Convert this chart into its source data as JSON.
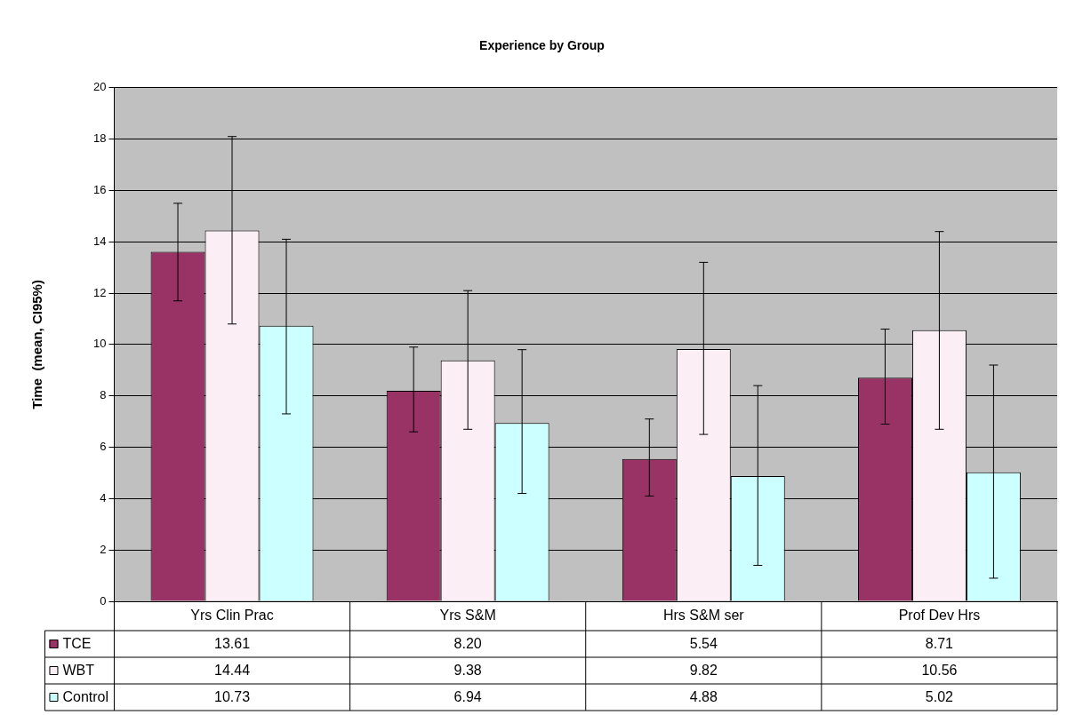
{
  "chart_data": {
    "type": "bar",
    "title": "Experience by Group",
    "ylabel": "Time  (mean, CI95%)",
    "categories": [
      "Yrs Clin Prac",
      "Yrs S&M",
      "Hrs S&M ser",
      "Prof Dev Hrs"
    ],
    "series": [
      {
        "name": "TCE",
        "color": "#993366",
        "values": [
          13.61,
          8.2,
          5.54,
          8.71
        ],
        "value_labels": [
          "13.61",
          "8.20",
          "5.54",
          "8.71"
        ],
        "errors": [
          [
            11.7,
            15.5
          ],
          [
            6.6,
            9.9
          ],
          [
            4.1,
            7.1
          ],
          [
            6.9,
            10.6
          ]
        ]
      },
      {
        "name": "WBT",
        "color": "#fbeef4",
        "values": [
          14.44,
          9.38,
          9.82,
          10.56
        ],
        "value_labels": [
          "14.44",
          "9.38",
          "9.82",
          "10.56"
        ],
        "errors": [
          [
            10.8,
            18.1
          ],
          [
            6.7,
            12.1
          ],
          [
            6.5,
            13.2
          ],
          [
            6.7,
            14.4
          ]
        ]
      },
      {
        "name": "Control",
        "color": "#ccffff",
        "values": [
          10.73,
          6.94,
          4.88,
          5.02
        ],
        "value_labels": [
          "10.73",
          "6.94",
          "4.88",
          "5.02"
        ],
        "errors": [
          [
            7.3,
            14.1
          ],
          [
            4.2,
            9.8
          ],
          [
            1.4,
            8.4
          ],
          [
            0.9,
            9.2
          ]
        ]
      }
    ],
    "ylim": [
      0,
      20
    ],
    "yticks": [
      0,
      2,
      4,
      6,
      8,
      10,
      12,
      14,
      16,
      18,
      20
    ],
    "grid": "y",
    "legend": "bottom"
  }
}
